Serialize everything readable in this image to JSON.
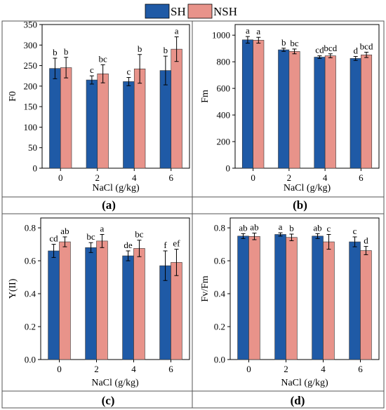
{
  "colors": {
    "sh": "#1f5aa6",
    "nsh": "#e8938a",
    "axis": "#000000",
    "frame": "#555555"
  },
  "legend": {
    "placement": "top-center",
    "items": [
      "SH",
      "NSH"
    ]
  },
  "chart_data": [
    {
      "type": "bar",
      "panel_label": "(a)",
      "ylabel": "F0",
      "xlabel": "NaCl (g/kg)",
      "categories": [
        "0",
        "2",
        "4",
        "6"
      ],
      "ylim": [
        0,
        350
      ],
      "yticks": [
        "0",
        "50",
        "100",
        "150",
        "200",
        "250",
        "300",
        "350"
      ],
      "grid": false,
      "series": [
        {
          "name": "SH",
          "values": [
            243,
            215,
            211,
            238
          ],
          "errors": [
            25,
            10,
            10,
            35
          ],
          "letters": [
            "b",
            "c",
            "c",
            "b"
          ]
        },
        {
          "name": "NSH",
          "values": [
            245,
            230,
            242,
            290
          ],
          "errors": [
            25,
            22,
            35,
            30
          ],
          "letters": [
            "b",
            "bc",
            "b",
            "a"
          ]
        }
      ]
    },
    {
      "type": "bar",
      "panel_label": "(b)",
      "ylabel": "Fm",
      "xlabel": "NaCl (g/kg)",
      "categories": [
        "0",
        "2",
        "4",
        "6"
      ],
      "ylim": [
        0,
        1080
      ],
      "yticks": [
        "0",
        "200",
        "400",
        "600",
        "800",
        "1000"
      ],
      "grid": false,
      "series": [
        {
          "name": "SH",
          "values": [
            965,
            890,
            835,
            825
          ],
          "errors": [
            25,
            12,
            10,
            15
          ],
          "letters": [
            "a",
            "b",
            "cd",
            "d"
          ]
        },
        {
          "name": "NSH",
          "values": [
            962,
            878,
            845,
            852
          ],
          "errors": [
            22,
            18,
            15,
            20
          ],
          "letters": [
            "a",
            "bc",
            "bcd",
            "bcd"
          ]
        }
      ]
    },
    {
      "type": "bar",
      "panel_label": "(c)",
      "ylabel": "Y(II)",
      "xlabel": "NaCl (g/kg)",
      "categories": [
        "0",
        "2",
        "4",
        "6"
      ],
      "ylim": [
        0,
        0.86
      ],
      "yticks": [
        "0.0",
        "0.2",
        "0.4",
        "0.6",
        "0.8"
      ],
      "grid": false,
      "series": [
        {
          "name": "SH",
          "values": [
            0.66,
            0.68,
            0.63,
            0.57
          ],
          "errors": [
            0.04,
            0.03,
            0.03,
            0.09
          ],
          "letters": [
            "cd",
            "bc",
            "de",
            "f"
          ]
        },
        {
          "name": "NSH",
          "values": [
            0.715,
            0.72,
            0.675,
            0.59
          ],
          "errors": [
            0.03,
            0.04,
            0.05,
            0.08
          ],
          "letters": [
            "ab",
            "a",
            "bc",
            "ef"
          ]
        }
      ]
    },
    {
      "type": "bar",
      "panel_label": "(d)",
      "ylabel": "Fv/Fm",
      "xlabel": "NaCl (g/kg)",
      "categories": [
        "0",
        "2",
        "4",
        "6"
      ],
      "ylim": [
        0,
        0.86
      ],
      "yticks": [
        "0.0",
        "0.2",
        "0.4",
        "0.6",
        "0.8"
      ],
      "grid": false,
      "series": [
        {
          "name": "SH",
          "values": [
            0.75,
            0.76,
            0.75,
            0.715
          ],
          "errors": [
            0.015,
            0.01,
            0.015,
            0.03
          ],
          "letters": [
            "ab",
            "a",
            "ab",
            "c"
          ]
        },
        {
          "name": "NSH",
          "values": [
            0.748,
            0.742,
            0.715,
            0.662
          ],
          "errors": [
            0.02,
            0.02,
            0.045,
            0.025
          ],
          "letters": [
            "ab",
            "b",
            "c",
            "d"
          ]
        }
      ]
    }
  ]
}
